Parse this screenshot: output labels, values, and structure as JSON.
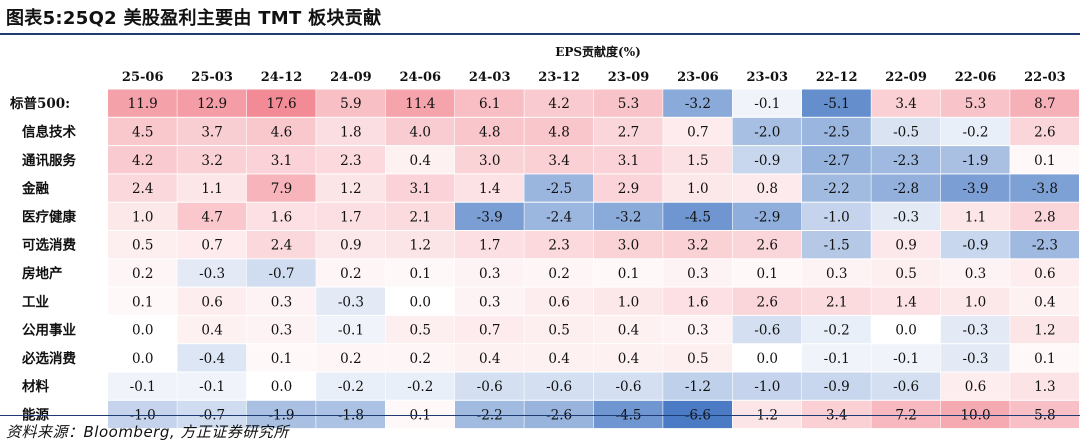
{
  "figure": {
    "title": "图表5:25Q2 美股盈利主要由 TMT 板块贡献",
    "source": "资料来源：Bloomberg, 方正证券研究所"
  },
  "chart_data": {
    "type": "heatmap",
    "title": "EPS贡献度(%)",
    "columns": [
      "25-06",
      "25-03",
      "24-12",
      "24-09",
      "24-06",
      "24-03",
      "23-12",
      "23-09",
      "23-06",
      "23-03",
      "22-12",
      "22-09",
      "22-06",
      "22-03"
    ],
    "rows": [
      "标普500:",
      "信息技术",
      "通讯服务",
      "金融",
      "医疗健康",
      "可选消费",
      "房地产",
      "工业",
      "公用事业",
      "必选消费",
      "材料",
      "能源"
    ],
    "values": [
      [
        11.9,
        12.9,
        17.6,
        5.9,
        11.4,
        6.1,
        4.2,
        5.3,
        -3.2,
        -0.1,
        -5.1,
        3.4,
        5.3,
        8.7
      ],
      [
        4.5,
        3.7,
        4.6,
        1.8,
        4.0,
        4.8,
        4.8,
        2.7,
        0.7,
        -2.0,
        -2.5,
        -0.5,
        -0.2,
        2.6
      ],
      [
        4.2,
        3.2,
        3.1,
        2.3,
        0.4,
        3.0,
        3.4,
        3.1,
        1.5,
        -0.9,
        -2.7,
        -2.3,
        -1.9,
        0.1
      ],
      [
        2.4,
        1.1,
        7.9,
        1.2,
        3.1,
        1.4,
        -2.5,
        2.9,
        1.0,
        0.8,
        -2.2,
        -2.8,
        -3.9,
        -3.8
      ],
      [
        1.0,
        4.7,
        1.6,
        1.7,
        2.1,
        -3.9,
        -2.4,
        -3.2,
        -4.5,
        -2.9,
        -1.0,
        -0.3,
        1.1,
        2.8
      ],
      [
        0.5,
        0.7,
        2.4,
        0.9,
        1.2,
        1.7,
        2.3,
        3.0,
        3.2,
        2.6,
        -1.5,
        0.9,
        -0.9,
        -2.3
      ],
      [
        0.2,
        -0.3,
        -0.7,
        0.2,
        0.1,
        0.3,
        0.2,
        0.1,
        0.3,
        0.1,
        0.3,
        0.5,
        0.3,
        0.6
      ],
      [
        0.1,
        0.6,
        0.3,
        -0.3,
        0.0,
        0.3,
        0.6,
        1.0,
        1.6,
        2.6,
        2.1,
        1.4,
        1.0,
        0.4
      ],
      [
        0.0,
        0.4,
        0.3,
        -0.1,
        0.5,
        0.7,
        0.5,
        0.4,
        0.3,
        -0.6,
        -0.2,
        0.0,
        -0.3,
        1.2
      ],
      [
        0.0,
        -0.4,
        0.1,
        0.2,
        0.2,
        0.4,
        0.4,
        0.4,
        0.5,
        0.0,
        -0.1,
        -0.1,
        -0.3,
        0.1
      ],
      [
        -0.1,
        -0.1,
        0.0,
        -0.2,
        -0.2,
        -0.6,
        -0.6,
        -0.6,
        -1.2,
        -1.0,
        -0.9,
        -0.6,
        0.6,
        1.3
      ],
      [
        -1.0,
        -0.7,
        -1.9,
        -1.8,
        0.1,
        -2.2,
        -2.6,
        -4.5,
        -6.6,
        1.2,
        3.4,
        7.2,
        10.0,
        5.8
      ]
    ],
    "colors": {
      "positive": "#f28b96",
      "negative": "#4a7bc4",
      "neutral": "#ffffff"
    }
  }
}
